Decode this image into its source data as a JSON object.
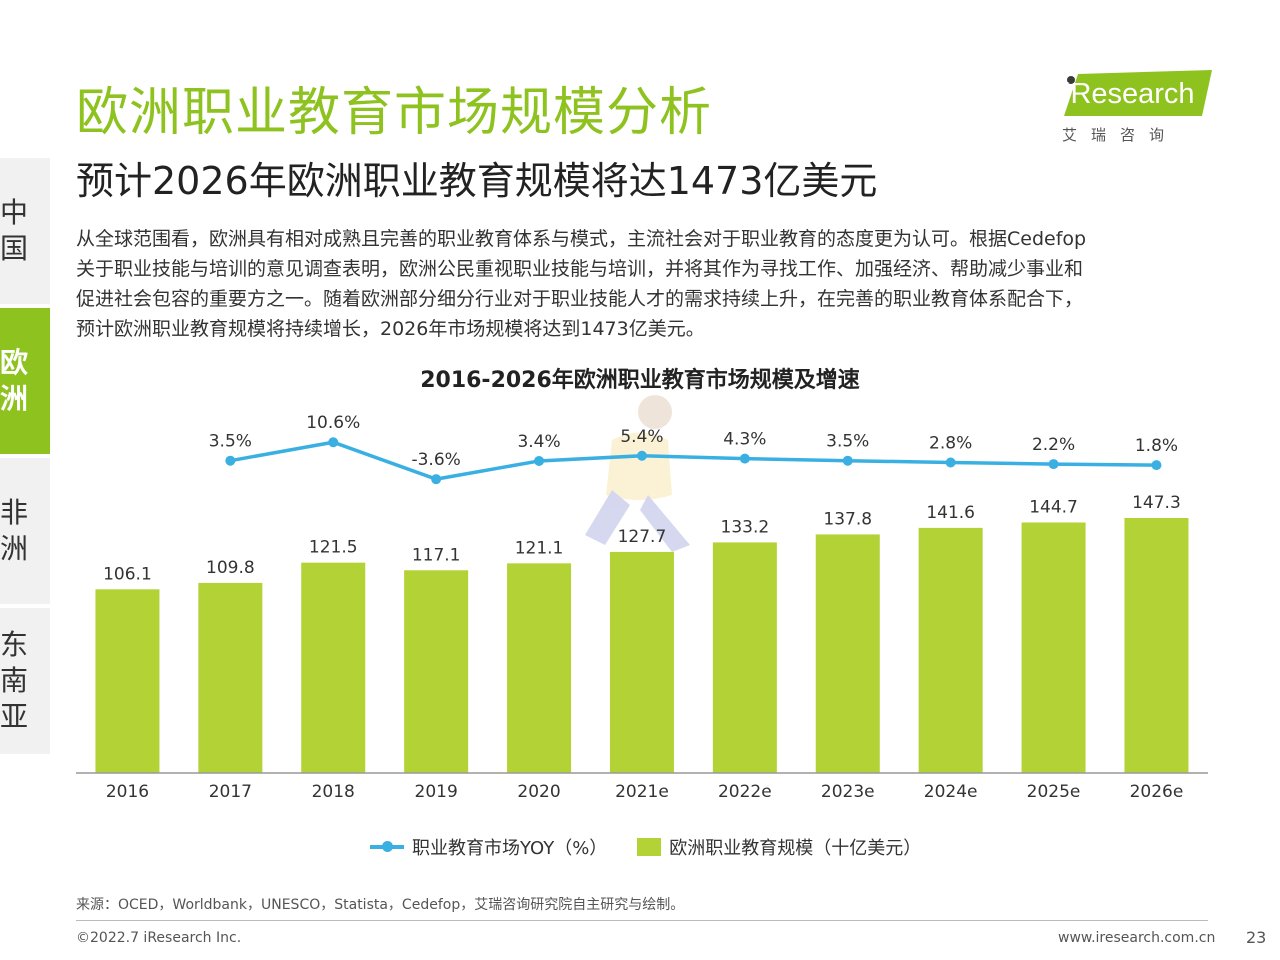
{
  "title": "欧洲职业教育市场规模分析",
  "subtitle": "预计2026年欧洲职业教育规模将达1473亿美元",
  "logo": {
    "brand": "iResearch",
    "cn": "艾瑞咨询"
  },
  "sidebar": {
    "tabs": [
      {
        "label": "中国",
        "active": false
      },
      {
        "label": "欧洲",
        "active": true
      },
      {
        "label": "非洲",
        "active": false
      },
      {
        "label": "东南亚",
        "active": false
      }
    ]
  },
  "paragraph": [
    "从全球范围看，欧洲具有相对成熟且完善的职业教育体系与模式，主流社会对于职业教育的态度更为认可。根据Cedefop",
    "关于职业技能与培训的意见调查表明，欧洲公民重视职业技能与培训，并将其作为寻找工作、加强经济、帮助减少事业和",
    "促进社会包容的重要方之一。随着欧洲部分细分行业对于职业技能人才的需求持续上升，在完善的职业教育体系配合下，",
    "预计欧洲职业教育规模将持续增长，2026年市场规模将达到1473亿美元。"
  ],
  "chart_data": {
    "type": "bar",
    "title": "2016-2026年欧洲职业教育市场规模及增速",
    "categories": [
      "2016",
      "2017",
      "2018",
      "2019",
      "2020",
      "2021e",
      "2022e",
      "2023e",
      "2024e",
      "2025e",
      "2026e"
    ],
    "series": [
      {
        "name": "欧洲职业教育规模（十亿美元）",
        "type": "bar",
        "values": [
          106.1,
          109.8,
          121.5,
          117.1,
          121.1,
          127.7,
          133.2,
          137.8,
          141.6,
          144.7,
          147.3
        ],
        "labels": [
          "106.1",
          "109.8",
          "121.5",
          "117.1",
          "121.1",
          "127.7",
          "133.2",
          "137.8",
          "141.6",
          "144.7",
          "147.3"
        ]
      },
      {
        "name": "职业教育市场YOY（%）",
        "type": "line",
        "values": [
          null,
          3.5,
          10.6,
          -3.6,
          3.4,
          5.4,
          4.3,
          3.5,
          2.8,
          2.2,
          1.8
        ],
        "labels": [
          "",
          "3.5%",
          "10.6%",
          "-3.6%",
          "3.4%",
          "5.4%",
          "4.3%",
          "3.5%",
          "2.8%",
          "2.2%",
          "1.8%"
        ]
      }
    ],
    "legend_position": "bottom",
    "colors": {
      "bar": "#b2d235",
      "line": "#3ab0e2"
    }
  },
  "legend": {
    "line_label": "职业教育市场YOY（%）",
    "bar_label": "欧洲职业教育规模（十亿美元）"
  },
  "source": "来源：OCED，Worldbank，UNESCO，Statista，Cedefop，艾瑞咨询研究院自主研究与绘制。",
  "footer": {
    "copyright": "©2022.7 iResearch Inc.",
    "website": "www.iresearch.com.cn",
    "page": "23"
  }
}
